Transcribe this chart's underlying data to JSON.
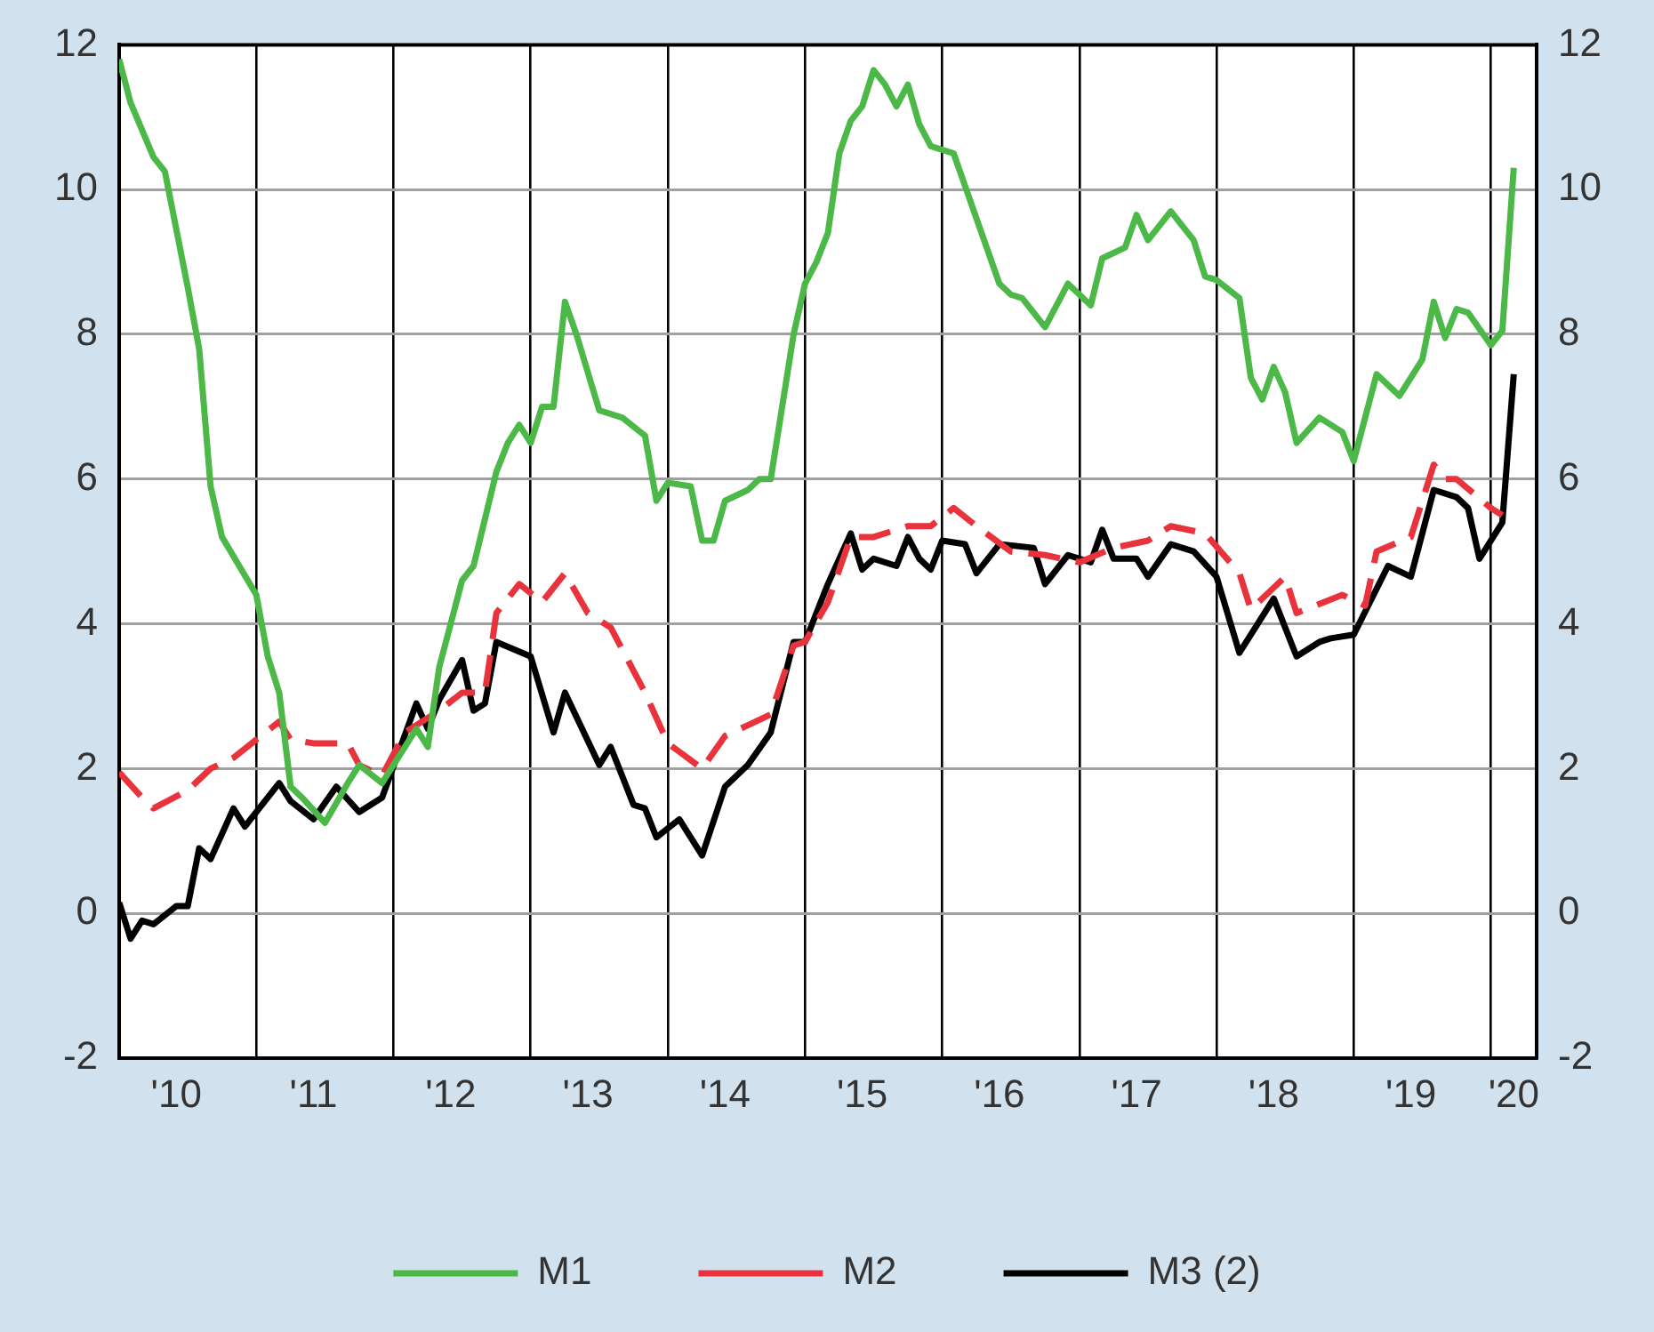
{
  "chart_data": {
    "type": "line",
    "xlim": [
      "2010-01",
      "2020-05"
    ],
    "xticks": [
      {
        "value": "2010-06",
        "label": "'10"
      },
      {
        "value": "2011-01",
        "label": null
      },
      {
        "value": "2011-06",
        "label": "'11"
      },
      {
        "value": "2012-01",
        "label": null
      },
      {
        "value": "2012-06",
        "label": "'12"
      },
      {
        "value": "2013-01",
        "label": null
      },
      {
        "value": "2013-06",
        "label": "'13"
      },
      {
        "value": "2014-01",
        "label": null
      },
      {
        "value": "2014-06",
        "label": "'14"
      },
      {
        "value": "2015-01",
        "label": null
      },
      {
        "value": "2015-06",
        "label": "'15"
      },
      {
        "value": "2016-01",
        "label": null
      },
      {
        "value": "2016-06",
        "label": "'16"
      },
      {
        "value": "2017-01",
        "label": null
      },
      {
        "value": "2017-06",
        "label": "'17"
      },
      {
        "value": "2018-01",
        "label": null
      },
      {
        "value": "2018-06",
        "label": "'18"
      },
      {
        "value": "2019-01",
        "label": null
      },
      {
        "value": "2019-06",
        "label": "'19"
      },
      {
        "value": "2020-01",
        "label": null
      },
      {
        "value": "2020-03",
        "label": "'20"
      }
    ],
    "ylim": [
      -2,
      12
    ],
    "yticks": [
      -2,
      0,
      2,
      4,
      6,
      8,
      10,
      12
    ],
    "y2lim": [
      -2,
      12
    ],
    "y2ticks": [
      -2,
      0,
      2,
      4,
      6,
      8,
      10,
      12
    ],
    "grid": true,
    "legend": "bottom",
    "series": [
      {
        "name": "M1",
        "color": "#4cb848",
        "line_style": "solid",
        "x": [
          "2010-01",
          "2010-02",
          "2010-04",
          "2010-05",
          "2010-07",
          "2010-08",
          "2010-09",
          "2010-10",
          "2011-01",
          "2011-02",
          "2011-03",
          "2011-04",
          "2011-05",
          "2011-07",
          "2011-09",
          "2011-10",
          "2011-12",
          "2012-03",
          "2012-04",
          "2012-05",
          "2012-07",
          "2012-08",
          "2012-10",
          "2012-11",
          "2012-12",
          "2013-01",
          "2013-02",
          "2013-03",
          "2013-04",
          "2013-05",
          "2013-07",
          "2013-09",
          "2013-11",
          "2013-12",
          "2014-01",
          "2014-03",
          "2014-04",
          "2014-05",
          "2014-06",
          "2014-08",
          "2014-09",
          "2014-10",
          "2014-12",
          "2015-01",
          "2015-02",
          "2015-03",
          "2015-04",
          "2015-05",
          "2015-06",
          "2015-07",
          "2015-08",
          "2015-09",
          "2015-10",
          "2015-11",
          "2015-12",
          "2016-02",
          "2016-03",
          "2016-06",
          "2016-07",
          "2016-08",
          "2016-10",
          "2016-12",
          "2017-02",
          "2017-03",
          "2017-05",
          "2017-06",
          "2017-07",
          "2017-09",
          "2017-11",
          "2017-12",
          "2018-01",
          "2018-03",
          "2018-04",
          "2018-05",
          "2018-06",
          "2018-07",
          "2018-08",
          "2018-10",
          "2018-12",
          "2019-01",
          "2019-03",
          "2019-05",
          "2019-07",
          "2019-08",
          "2019-09",
          "2019-10",
          "2019-11",
          "2020-01",
          "2020-02",
          "2020-03"
        ],
        "values": [
          11.8,
          11.2,
          10.45,
          10.25,
          8.65,
          7.8,
          5.9,
          5.2,
          4.4,
          3.55,
          3.05,
          1.75,
          1.6,
          1.25,
          1.8,
          2.05,
          1.8,
          2.55,
          2.3,
          3.4,
          4.6,
          4.8,
          6.1,
          6.5,
          6.75,
          6.5,
          7.0,
          7.0,
          8.45,
          8.0,
          6.95,
          6.85,
          6.6,
          5.7,
          5.95,
          5.9,
          5.15,
          5.15,
          5.7,
          5.85,
          6.0,
          6.0,
          8.0,
          8.7,
          9.0,
          9.4,
          10.5,
          10.95,
          11.15,
          11.65,
          11.45,
          11.15,
          11.45,
          10.9,
          10.6,
          10.5,
          10.05,
          8.7,
          8.55,
          8.5,
          8.1,
          8.7,
          8.4,
          9.05,
          9.2,
          9.65,
          9.3,
          9.7,
          9.3,
          8.8,
          8.75,
          8.5,
          7.4,
          7.1,
          7.55,
          7.2,
          6.5,
          6.85,
          6.65,
          6.25,
          7.45,
          7.15,
          7.65,
          8.45,
          7.95,
          8.35,
          8.3,
          7.85,
          8.05,
          10.3
        ]
      },
      {
        "name": "M2",
        "color": "#e8323c",
        "line_style": "dashed",
        "x": [
          "2010-01",
          "2010-03",
          "2010-04",
          "2010-07",
          "2010-09",
          "2010-11",
          "2011-01",
          "2011-03",
          "2011-04",
          "2011-06",
          "2011-09",
          "2011-10",
          "2011-12",
          "2012-02",
          "2012-05",
          "2012-07",
          "2012-09",
          "2012-10",
          "2012-12",
          "2013-02",
          "2013-04",
          "2013-06",
          "2013-08",
          "2013-09",
          "2013-11",
          "2014-01",
          "2014-04",
          "2014-06",
          "2014-08",
          "2014-10",
          "2014-12",
          "2015-01",
          "2015-03",
          "2015-05",
          "2015-07",
          "2015-10",
          "2015-12",
          "2016-02",
          "2016-04",
          "2016-07",
          "2016-10",
          "2017-01",
          "2017-04",
          "2017-07",
          "2017-09",
          "2017-12",
          "2018-03",
          "2018-04",
          "2018-07",
          "2018-08",
          "2018-12",
          "2019-02",
          "2019-03",
          "2019-06",
          "2019-08",
          "2019-09",
          "2019-10",
          "2020-01",
          "2020-02"
        ],
        "values": [
          1.95,
          1.6,
          1.45,
          1.7,
          2.0,
          2.15,
          2.4,
          2.65,
          2.4,
          2.35,
          2.35,
          2.05,
          1.9,
          2.5,
          2.8,
          3.05,
          3.05,
          4.15,
          4.55,
          4.3,
          4.7,
          4.15,
          3.95,
          3.65,
          3.05,
          2.35,
          2.0,
          2.45,
          2.6,
          2.75,
          3.7,
          3.75,
          4.3,
          5.2,
          5.2,
          5.35,
          5.35,
          5.6,
          5.35,
          5.0,
          4.95,
          4.85,
          5.05,
          5.15,
          5.35,
          5.25,
          4.7,
          4.2,
          4.65,
          4.15,
          4.4,
          4.25,
          5.0,
          5.2,
          6.2,
          6.0,
          6.0,
          5.6,
          5.5
        ]
      },
      {
        "name": "M3 (2)",
        "color": "#000000",
        "line_style": "solid",
        "x": [
          "2010-01",
          "2010-02",
          "2010-03",
          "2010-04",
          "2010-06",
          "2010-07",
          "2010-08",
          "2010-09",
          "2010-11",
          "2010-12",
          "2011-03",
          "2011-04",
          "2011-06",
          "2011-08",
          "2011-10",
          "2011-12",
          "2012-03",
          "2012-04",
          "2012-05",
          "2012-07",
          "2012-08",
          "2012-09",
          "2012-10",
          "2013-01",
          "2013-03",
          "2013-04",
          "2013-07",
          "2013-08",
          "2013-10",
          "2013-11",
          "2013-12",
          "2014-02",
          "2014-04",
          "2014-06",
          "2014-08",
          "2014-10",
          "2014-12",
          "2015-01",
          "2015-03",
          "2015-05",
          "2015-06",
          "2015-07",
          "2015-09",
          "2015-10",
          "2015-11",
          "2015-12",
          "2016-01",
          "2016-03",
          "2016-04",
          "2016-06",
          "2016-09",
          "2016-10",
          "2016-12",
          "2017-02",
          "2017-03",
          "2017-04",
          "2017-06",
          "2017-07",
          "2017-09",
          "2017-11",
          "2018-01",
          "2018-03",
          "2018-06",
          "2018-08",
          "2018-10",
          "2018-11",
          "2019-01",
          "2019-04",
          "2019-06",
          "2019-08",
          "2019-10",
          "2019-11",
          "2019-12",
          "2020-02",
          "2020-03"
        ],
        "values": [
          0.15,
          -0.35,
          -0.1,
          -0.15,
          0.1,
          0.1,
          0.9,
          0.75,
          1.45,
          1.2,
          1.8,
          1.55,
          1.3,
          1.75,
          1.4,
          1.6,
          2.9,
          2.55,
          2.95,
          3.5,
          2.8,
          2.9,
          3.75,
          3.55,
          2.5,
          3.05,
          2.05,
          2.3,
          1.5,
          1.45,
          1.05,
          1.3,
          0.8,
          1.75,
          2.05,
          2.5,
          3.75,
          3.75,
          4.55,
          5.25,
          4.75,
          4.9,
          4.8,
          5.2,
          4.9,
          4.75,
          5.15,
          5.1,
          4.7,
          5.1,
          5.05,
          4.55,
          4.95,
          4.85,
          5.3,
          4.9,
          4.9,
          4.65,
          5.1,
          5.0,
          4.65,
          3.6,
          4.35,
          3.55,
          3.75,
          3.8,
          3.85,
          4.8,
          4.65,
          5.85,
          5.75,
          5.6,
          4.9,
          5.4,
          7.45
        ]
      }
    ]
  }
}
